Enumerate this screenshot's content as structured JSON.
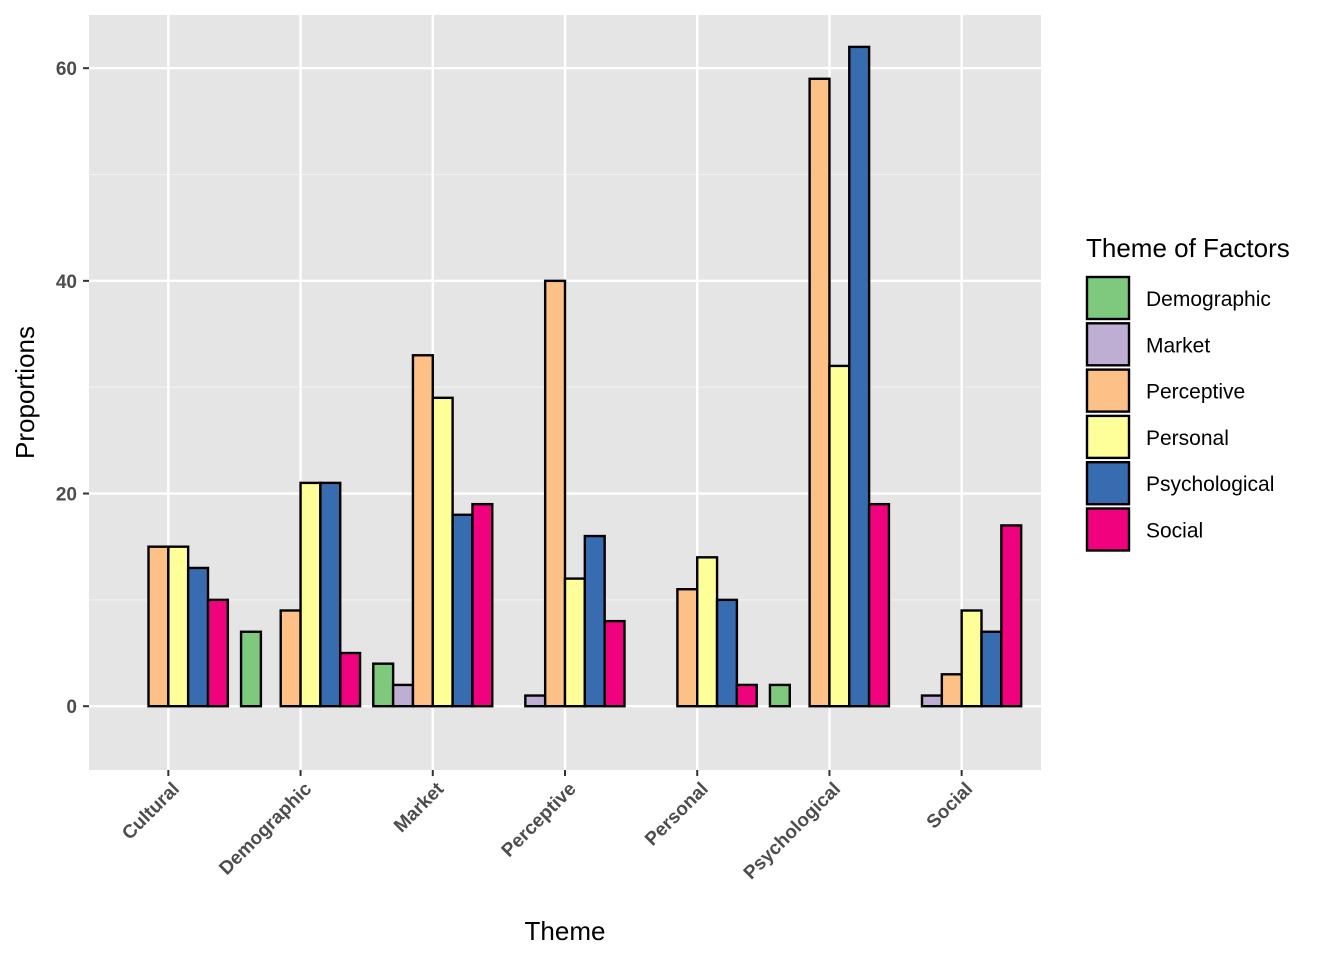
{
  "chart_data": {
    "type": "bar",
    "xlabel": "Theme",
    "ylabel": "Proportions",
    "ylim": [
      -6,
      65
    ],
    "yticks": [
      0,
      20,
      40,
      60
    ],
    "yminor": [
      10,
      30,
      50
    ],
    "grid": true,
    "legend": {
      "title": "Theme of Factors",
      "position": "right"
    },
    "categories": [
      "Cultural",
      "Demographic",
      "Market",
      "Perceptive",
      "Personal",
      "Psychological",
      "Social"
    ],
    "series": [
      {
        "name": "Demographic",
        "color": "#7fc97f",
        "values": [
          null,
          7,
          4,
          null,
          null,
          2,
          null
        ]
      },
      {
        "name": "Market",
        "color": "#beaed4",
        "values": [
          null,
          null,
          2,
          1,
          null,
          null,
          1
        ]
      },
      {
        "name": "Perceptive",
        "color": "#fdc086",
        "values": [
          15,
          9,
          33,
          40,
          11,
          59,
          3
        ]
      },
      {
        "name": "Personal",
        "color": "#ffff99",
        "values": [
          15,
          21,
          29,
          12,
          14,
          32,
          9
        ]
      },
      {
        "name": "Psychological",
        "color": "#386cb0",
        "values": [
          13,
          21,
          18,
          16,
          10,
          62,
          7
        ]
      },
      {
        "name": "Social",
        "color": "#f0027f",
        "values": [
          10,
          5,
          19,
          8,
          2,
          19,
          17
        ]
      }
    ]
  }
}
